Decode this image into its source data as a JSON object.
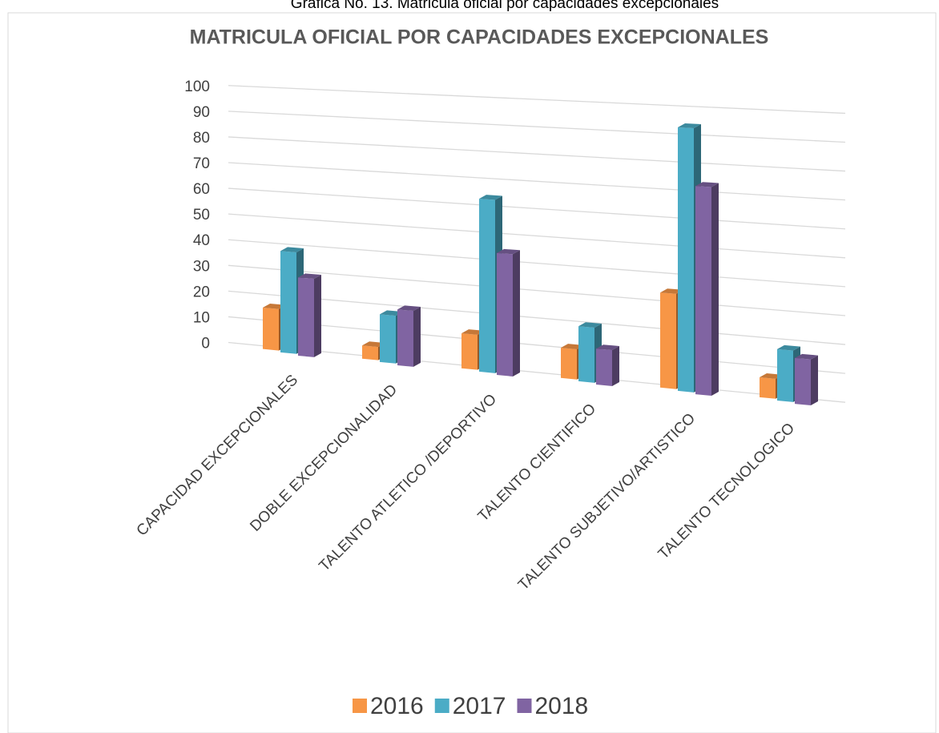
{
  "chart_data": {
    "type": "bar3d",
    "subtitle": "Grafica No. 13. Matricula oficial por capacidades excepcionales",
    "title": "MATRICULA OFICIAL POR CAPACIDADES EXCEPCIONALES",
    "categories": [
      "CAPACIDAD EXCEPCIONALES",
      "DOBLE EXCEPCIONALIDAD",
      "TALENTO ATLETICO /DEPORTIVO",
      "TALENTO CIENTIFICO",
      "TALENTO SUBJETIVO/ARTISTICO",
      "TALENTO TECNOLOGICO"
    ],
    "series": [
      {
        "name": "2016",
        "color": "#f79646",
        "values": [
          16,
          5,
          13,
          11,
          34,
          7
        ]
      },
      {
        "name": "2017",
        "color": "#4bacc6",
        "values": [
          39,
          18,
          64,
          20,
          94,
          18
        ]
      },
      {
        "name": "2018",
        "color": "#8064a2",
        "values": [
          30,
          21,
          45,
          13,
          74,
          16
        ]
      }
    ],
    "ylim": [
      0,
      100
    ],
    "yticks": [
      0,
      10,
      20,
      30,
      40,
      50,
      60,
      70,
      80,
      90,
      100
    ],
    "grid": true,
    "legend": "bottom"
  }
}
